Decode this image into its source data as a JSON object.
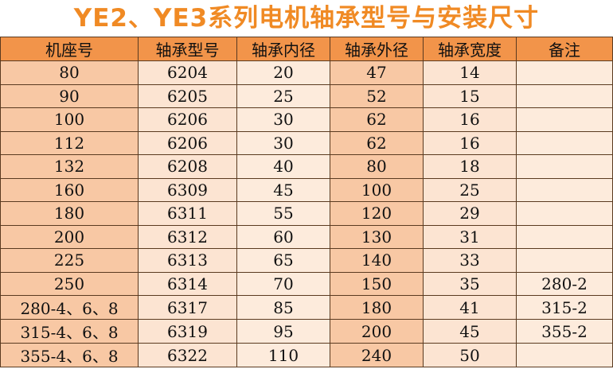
{
  "title": "YE2、YE3系列电机轴承型号与安装尺寸",
  "headers": [
    "机座号",
    "轴承型号",
    "轴承内径",
    "轴承外径",
    "轴承宽度",
    "备注"
  ],
  "rows": [
    [
      "80",
      "6204",
      "20",
      "47",
      "14",
      ""
    ],
    [
      "90",
      "6205",
      "25",
      "52",
      "15",
      ""
    ],
    [
      "100",
      "6206",
      "30",
      "62",
      "16",
      ""
    ],
    [
      "112",
      "6206",
      "30",
      "62",
      "16",
      ""
    ],
    [
      "132",
      "6208",
      "40",
      "80",
      "18",
      ""
    ],
    [
      "160",
      "6309",
      "45",
      "100",
      "25",
      ""
    ],
    [
      "180",
      "6311",
      "55",
      "120",
      "29",
      ""
    ],
    [
      "200",
      "6312",
      "60",
      "130",
      "31",
      ""
    ],
    [
      "225",
      "6313",
      "65",
      "140",
      "33",
      ""
    ],
    [
      "250",
      "6314",
      "70",
      "150",
      "35",
      "280-2"
    ],
    [
      "280-4、6、8",
      "6317",
      "85",
      "180",
      "41",
      "315-2"
    ],
    [
      "315-4、6、8",
      "6319",
      "95",
      "200",
      "45",
      "355-2"
    ],
    [
      "355-4、6、8",
      "6322",
      "110",
      "240",
      "50",
      ""
    ]
  ]
}
